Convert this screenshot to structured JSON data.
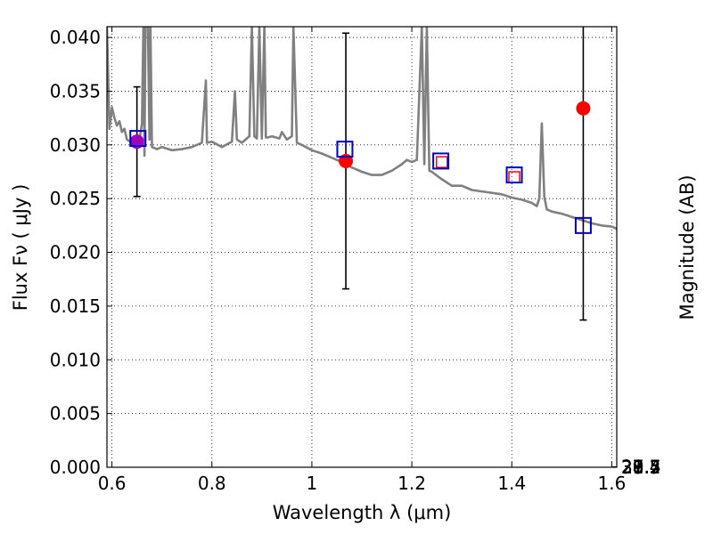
{
  "chart_data": {
    "type": "scatter",
    "title": "",
    "xlabel": "Wavelength  λ (μm)",
    "ylabel": "Flux  Fν  ( μJy )",
    "ylabel_right": "Magnitude (AB)",
    "xlim": [
      0.59,
      1.61
    ],
    "ylim": [
      0.0,
      0.041
    ],
    "grid": true,
    "x_ticks": [
      0.6,
      0.8,
      1.0,
      1.2,
      1.4,
      1.6
    ],
    "x_tick_labels": [
      "0.6",
      "0.8",
      "1",
      "1.2",
      "1.4",
      "1.6"
    ],
    "y_ticks": [
      0.0,
      0.005,
      0.01,
      0.015,
      0.02,
      0.025,
      0.03,
      0.035,
      0.04
    ],
    "y_tick_labels": [
      "0.000",
      "0.005",
      "0.010",
      "0.015",
      "0.020",
      "0.025",
      "0.030",
      "0.035",
      "0.040"
    ],
    "mag_ticks": [
      27.4,
      27.5,
      27.7,
      28,
      28.2,
      28.5,
      29,
      29.5,
      30,
      31
    ],
    "mag_tick_labels": [
      "27.4",
      "27.5",
      "27.7",
      "28",
      "28.2",
      "28.5",
      "29",
      "29.5",
      "30",
      "31"
    ],
    "colors": {
      "spectrum": "#808080",
      "observed": "#ff0000",
      "model": "#0000cc",
      "model_inner": "#ff0000",
      "errorbar": "#000000",
      "overlap": "#a000c0"
    },
    "series": [
      {
        "name": "Model spectrum",
        "kind": "line",
        "x": [
          0.59,
          0.595,
          0.6,
          0.605,
          0.61,
          0.615,
          0.62,
          0.625,
          0.63,
          0.64,
          0.645,
          0.65,
          0.655,
          0.66,
          0.663,
          0.665,
          0.667,
          0.672,
          0.675,
          0.677,
          0.68,
          0.69,
          0.7,
          0.72,
          0.74,
          0.76,
          0.78,
          0.788,
          0.79,
          0.8,
          0.82,
          0.84,
          0.846,
          0.85,
          0.86,
          0.875,
          0.88,
          0.885,
          0.89,
          0.895,
          0.9,
          0.905,
          0.908,
          0.912,
          0.92,
          0.935,
          0.94,
          0.95,
          0.96,
          0.963,
          0.97,
          0.98,
          1.0,
          1.02,
          1.04,
          1.06,
          1.08,
          1.1,
          1.12,
          1.14,
          1.16,
          1.18,
          1.19,
          1.2,
          1.21,
          1.22,
          1.225,
          1.23,
          1.235,
          1.24,
          1.26,
          1.28,
          1.3,
          1.32,
          1.35,
          1.38,
          1.4,
          1.42,
          1.44,
          1.45,
          1.455,
          1.46,
          1.465,
          1.47,
          1.48,
          1.5,
          1.52,
          1.54,
          1.56,
          1.58,
          1.6,
          1.61
        ],
        "y": [
          0.041,
          0.0315,
          0.0335,
          0.0325,
          0.0318,
          0.0322,
          0.0312,
          0.0315,
          0.0305,
          0.0302,
          0.0308,
          0.0302,
          0.0305,
          0.032,
          0.041,
          0.029,
          0.041,
          0.041,
          0.0305,
          0.041,
          0.0298,
          0.0296,
          0.0298,
          0.0295,
          0.0296,
          0.0298,
          0.0302,
          0.036,
          0.0302,
          0.0303,
          0.0298,
          0.0303,
          0.035,
          0.0305,
          0.0302,
          0.0308,
          0.041,
          0.0308,
          0.0306,
          0.041,
          0.0306,
          0.041,
          0.0307,
          0.0307,
          0.0308,
          0.0306,
          0.0312,
          0.0305,
          0.0308,
          0.041,
          0.0302,
          0.03,
          0.0295,
          0.0292,
          0.0288,
          0.0284,
          0.0279,
          0.0275,
          0.0272,
          0.0272,
          0.0276,
          0.0282,
          0.0286,
          0.0284,
          0.0286,
          0.041,
          0.0282,
          0.041,
          0.0276,
          0.0275,
          0.0268,
          0.0262,
          0.0262,
          0.0258,
          0.0256,
          0.0254,
          0.0251,
          0.0249,
          0.0246,
          0.0243,
          0.025,
          0.032,
          0.0252,
          0.024,
          0.0238,
          0.0236,
          0.0233,
          0.023,
          0.0227,
          0.0225,
          0.0224,
          0.0222
        ]
      },
      {
        "name": "Observed flux",
        "kind": "points_with_errorbars",
        "x": [
          0.65,
          1.068,
          1.543
        ],
        "y": [
          0.0303,
          0.0285,
          0.0334
        ],
        "yerr": [
          0.0051,
          0.0119,
          0.0197
        ]
      },
      {
        "name": "Observed flux (no error)",
        "kind": "inner_squares",
        "x": [
          1.26,
          1.405
        ],
        "y": [
          0.0284,
          0.027
        ]
      },
      {
        "name": "Model band flux",
        "kind": "open_squares",
        "x": [
          0.652,
          1.066,
          1.258,
          1.405,
          1.543
        ],
        "y": [
          0.0306,
          0.0296,
          0.0285,
          0.0272,
          0.0225
        ]
      }
    ]
  }
}
